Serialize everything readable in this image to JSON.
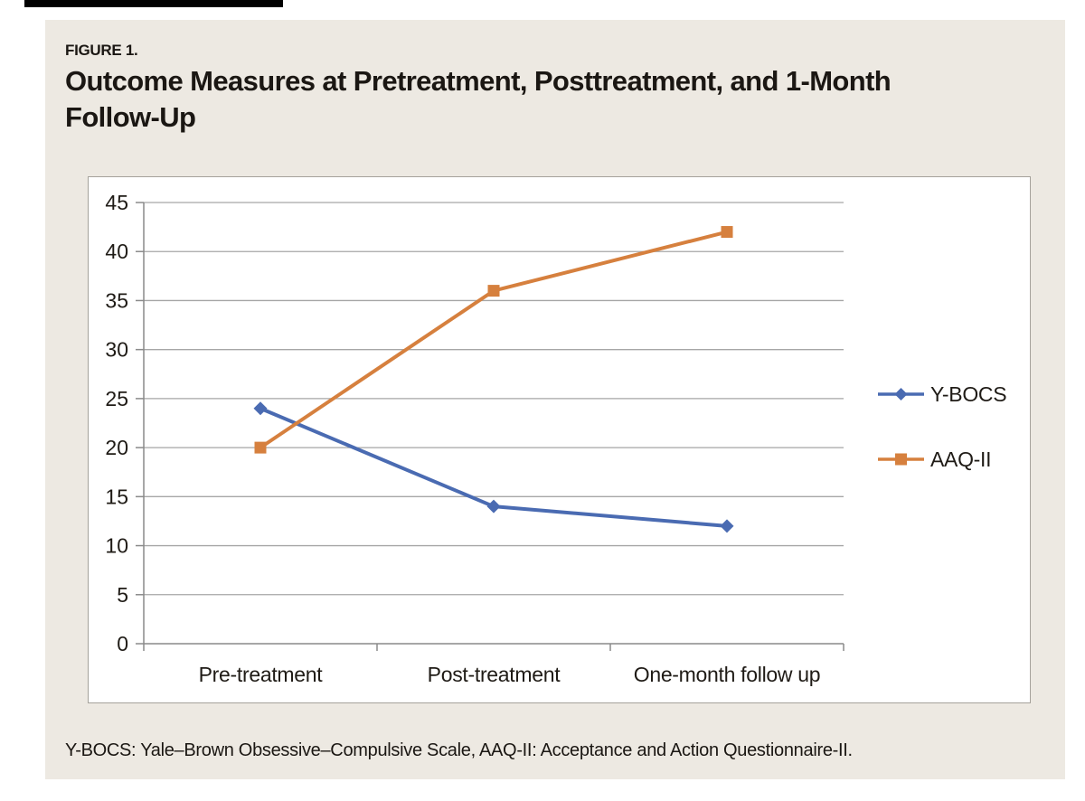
{
  "page": {
    "background": "#ffffff",
    "top_rule_color": "#000000"
  },
  "figure": {
    "label": "FIGURE 1.",
    "title": "Outcome Measures at Pretreatment, Posttreatment, and 1-Month Follow-Up",
    "footnote": "Y-BOCS: Yale–Brown Obsessive–Compulsive Scale, AAQ-II: Acceptance and Action Questionnaire-II.",
    "panel_background": "#ede9e2",
    "text_color": "#1b1713"
  },
  "chart_data": {
    "type": "line",
    "categories": [
      "Pre-treatment",
      "Post-treatment",
      "One-month follow up"
    ],
    "series": [
      {
        "name": "Y-BOCS",
        "values": [
          24,
          14,
          12
        ],
        "color": "#4a6bb2",
        "marker": "diamond"
      },
      {
        "name": "AAQ-II",
        "values": [
          20,
          36,
          42
        ],
        "color": "#d6803e",
        "marker": "square"
      }
    ],
    "title": "",
    "xlabel": "",
    "ylabel": "",
    "ylim": [
      0,
      45
    ],
    "ytick_step": 5,
    "yticks": [
      0,
      5,
      10,
      15,
      20,
      25,
      30,
      35,
      40,
      45
    ],
    "grid": true,
    "legend_position": "right",
    "plot_background": "#ffffff",
    "plot_border_color": "#a5a29b",
    "gridline_color": "#a6a6a6",
    "axis_color": "#8a8a8a",
    "tick_label_color": "#1f1b16"
  }
}
